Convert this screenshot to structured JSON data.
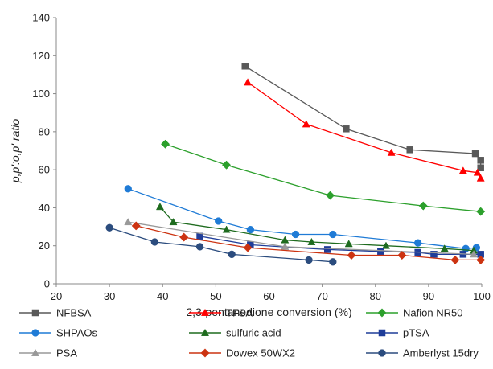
{
  "chart_data": {
    "type": "line",
    "title": "",
    "xlabel": "2,3-pentanedione conversion (%)",
    "ylabel": "p,p':o,p' ratio",
    "xlim": [
      20,
      100
    ],
    "ylim": [
      0,
      140
    ],
    "xticks": [
      "20",
      "30",
      "40",
      "50",
      "60",
      "70",
      "80",
      "90",
      "100"
    ],
    "yticks": [
      "0",
      "20",
      "40",
      "60",
      "80",
      "100",
      "120",
      "140"
    ],
    "grid": false,
    "legend_position": "bottom",
    "series": [
      {
        "name": "NFBSA",
        "color": "#595959",
        "marker": "square",
        "x": [
          55.5,
          74.5,
          86.5,
          98.8,
          99.8,
          99.8
        ],
        "y": [
          114.5,
          81.5,
          70.5,
          68.5,
          65.0,
          61.0
        ]
      },
      {
        "name": "TFSA",
        "color": "#ff0000",
        "marker": "triangle",
        "x": [
          56,
          67,
          83,
          96.5,
          99.2,
          99.8
        ],
        "y": [
          106,
          84,
          69,
          59.5,
          58.5,
          55.5
        ]
      },
      {
        "name": "Nafion NR50",
        "color": "#2ca02c",
        "marker": "diamond",
        "x": [
          40.5,
          52,
          71.5,
          89,
          99.8
        ],
        "y": [
          73.5,
          62.5,
          46.5,
          41,
          38
        ]
      },
      {
        "name": "SHPAOs",
        "color": "#1f7bd6",
        "marker": "circle",
        "x": [
          33.5,
          50.5,
          56.5,
          65,
          72,
          88,
          97,
          99
        ],
        "y": [
          50,
          33,
          28.5,
          26,
          26,
          21.5,
          18.5,
          19
        ]
      },
      {
        "name": "sulfuric acid",
        "color": "#1e6b1e",
        "marker": "triangle",
        "x": [
          39.5,
          42,
          52,
          63,
          68,
          75,
          82,
          93,
          98.5
        ],
        "y": [
          40.5,
          32.5,
          28.5,
          23,
          22,
          21,
          20,
          18.5,
          17.5
        ]
      },
      {
        "name": "pTSA",
        "color": "#1f3d99",
        "marker": "square",
        "x": [
          47,
          56.5,
          71,
          81,
          88,
          91,
          96.5,
          99.8
        ],
        "y": [
          25,
          20.5,
          18,
          17,
          16.5,
          15.5,
          15.5,
          15.5
        ]
      },
      {
        "name": "PSA",
        "color": "#999999",
        "marker": "triangle",
        "x": [
          33.5,
          63,
          98.5
        ],
        "y": [
          32.5,
          19.5,
          15.5
        ]
      },
      {
        "name": "Dowex 50WX2",
        "color": "#cc3311",
        "marker": "diamond",
        "x": [
          35,
          44,
          56,
          75.5,
          85,
          95,
          99.8
        ],
        "y": [
          30.5,
          24.5,
          19,
          15,
          15,
          12.5,
          12.5
        ]
      },
      {
        "name": "Amberlyst 15dry",
        "color": "#2b4c7e",
        "marker": "circle",
        "x": [
          30,
          38.5,
          47,
          53,
          67.5,
          72
        ],
        "y": [
          29.5,
          22,
          19.5,
          15.5,
          12.5,
          11.5
        ]
      }
    ]
  }
}
